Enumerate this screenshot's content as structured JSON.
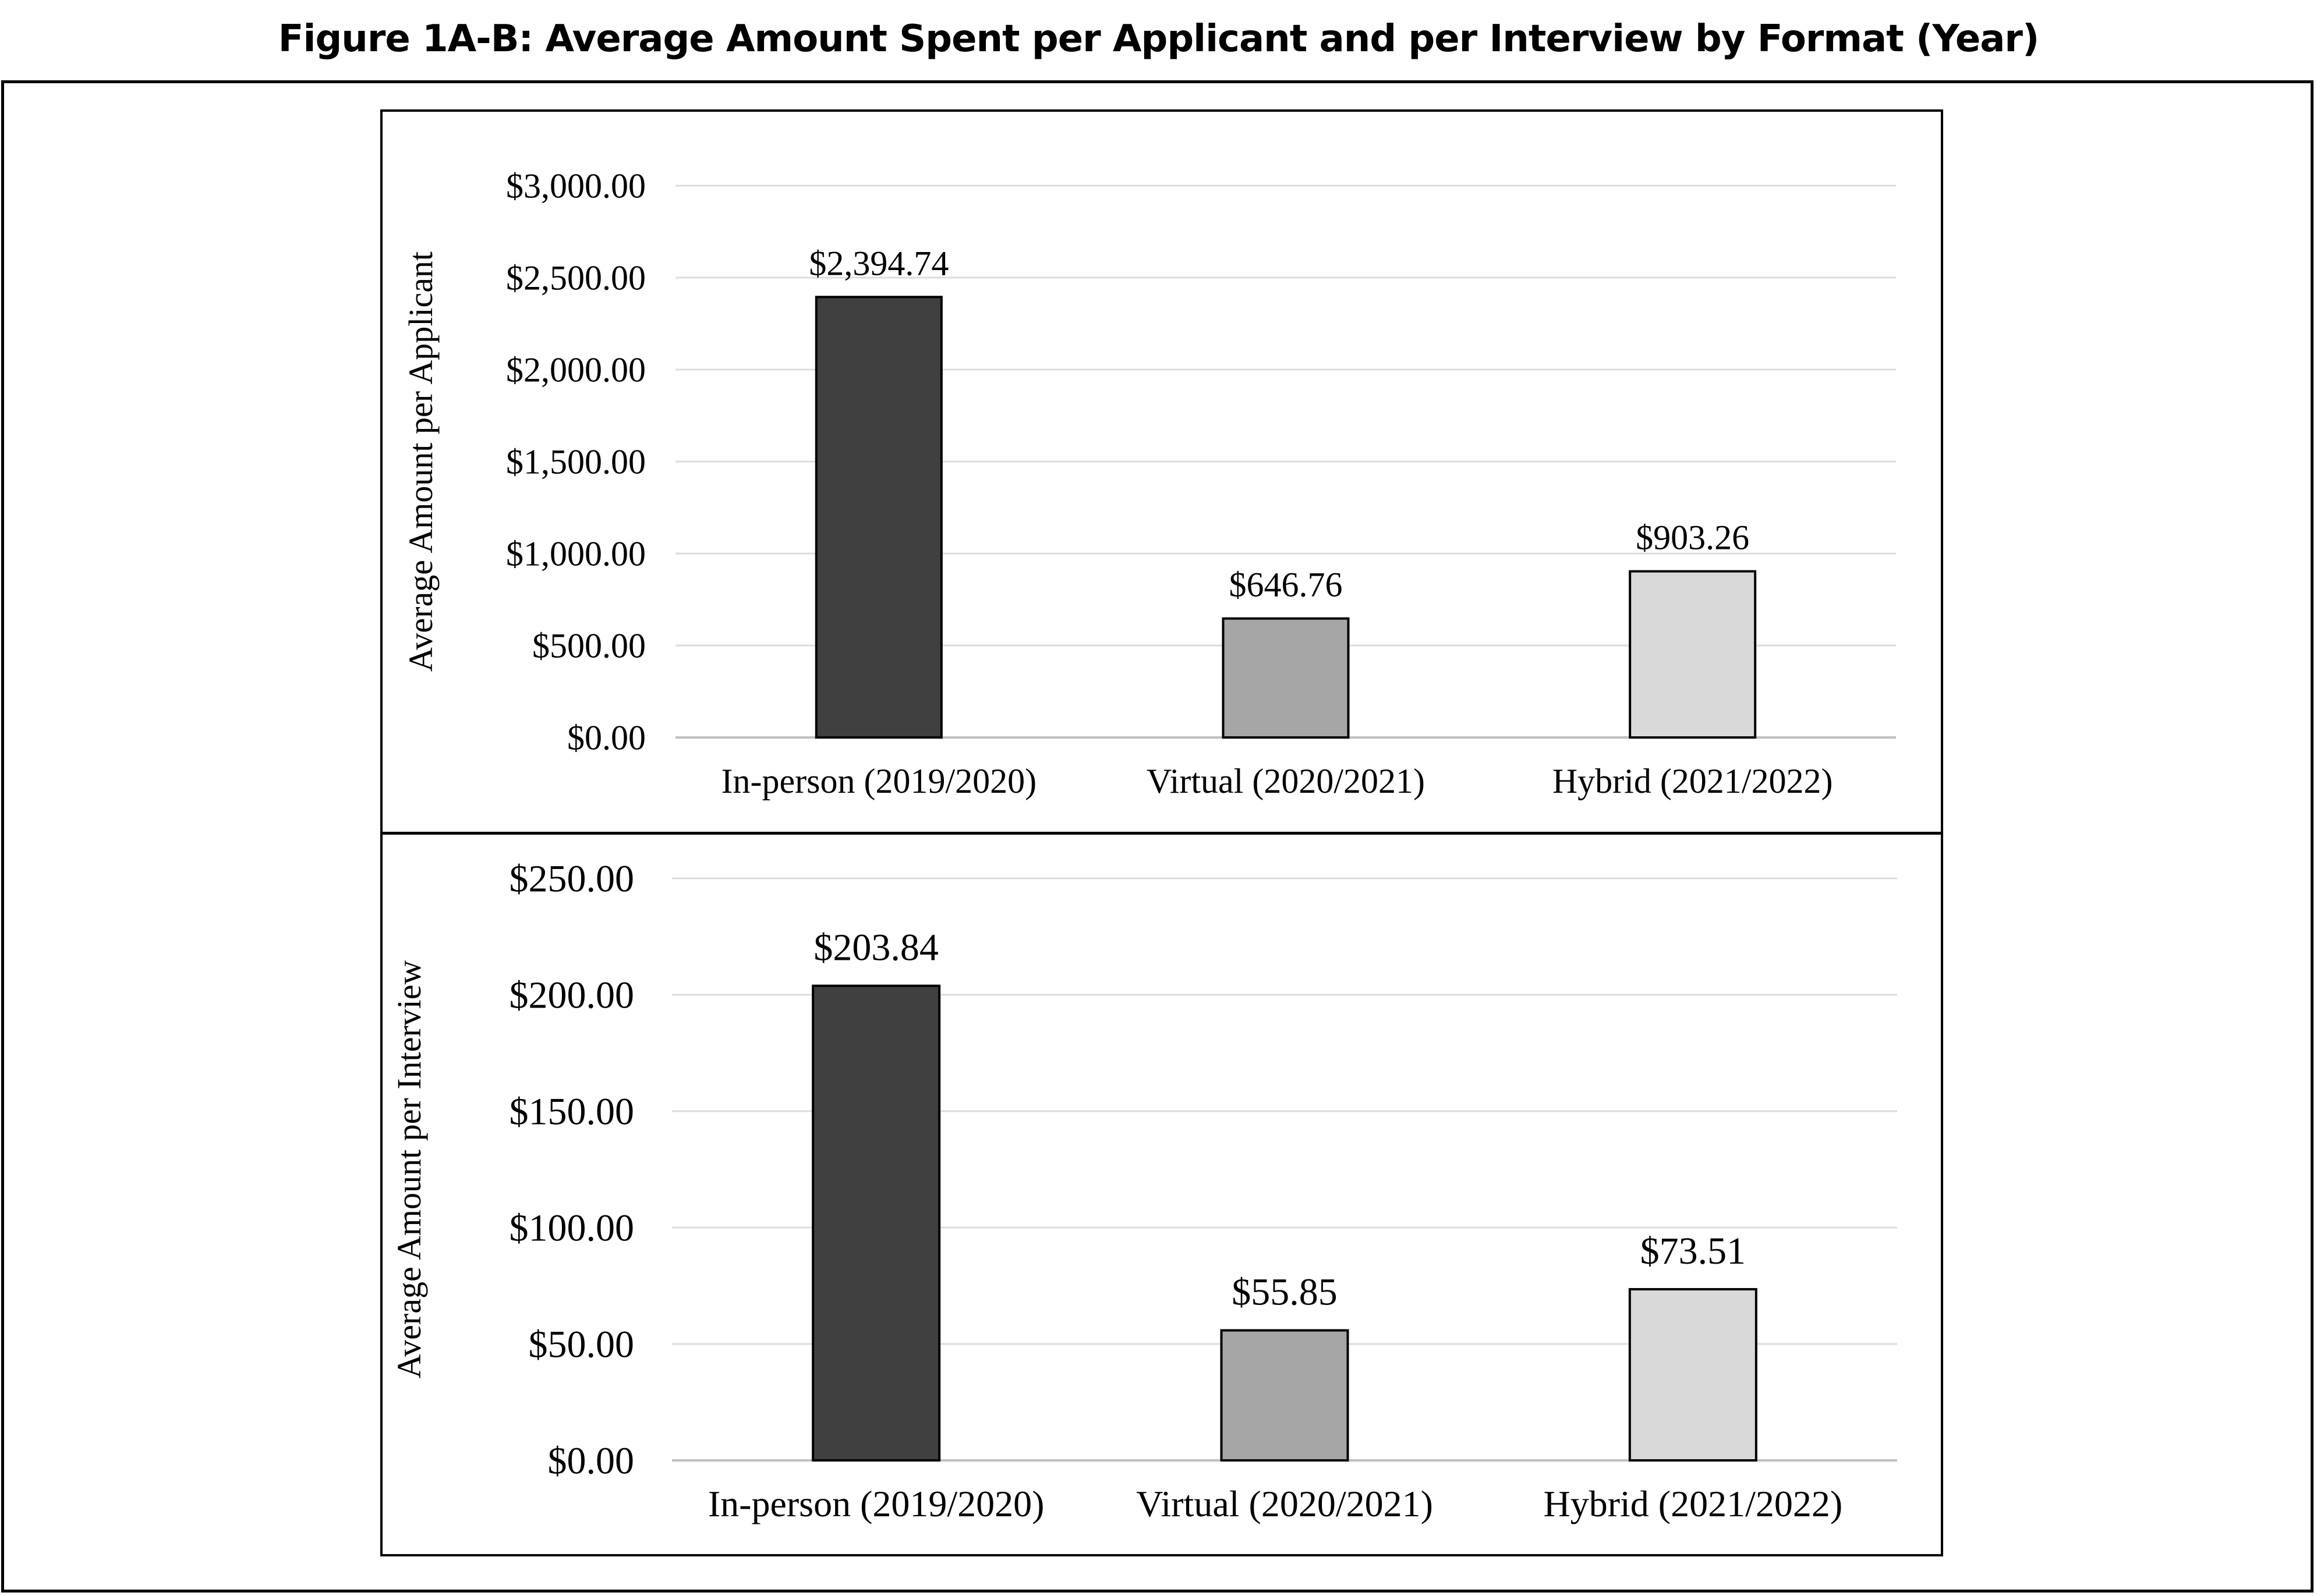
{
  "figure": {
    "title": "Figure 1A-B: Average Amount Spent per Applicant and per Interview by Format (Year)"
  },
  "chart_data": [
    {
      "type": "bar",
      "title": "",
      "xlabel": "",
      "ylabel": "Average Amount per Applicant",
      "categories": [
        "In-person (2019/2020)",
        "Virtual (2020/2021)",
        "Hybrid (2021/2022)"
      ],
      "values": [
        2394.74,
        646.76,
        903.26
      ],
      "data_labels": [
        "$2,394.74",
        "$646.76",
        "$903.26"
      ],
      "bar_colors": [
        "#404040",
        "#a6a6a6",
        "#d9d9d9"
      ],
      "ylim": [
        0,
        3000
      ],
      "yticks": [
        0,
        500,
        1000,
        1500,
        2000,
        2500,
        3000
      ],
      "ytick_labels": [
        "$0.00",
        "$500.00",
        "$1,000.00",
        "$1,500.00",
        "$2,000.00",
        "$2,500.00",
        "$3,000.00"
      ],
      "grid": true,
      "legend": "none"
    },
    {
      "type": "bar",
      "title": "",
      "xlabel": "",
      "ylabel": "Average Amount per Interview",
      "categories": [
        "In-person (2019/2020)",
        "Virtual (2020/2021)",
        "Hybrid (2021/2022)"
      ],
      "values": [
        203.84,
        55.85,
        73.51
      ],
      "data_labels": [
        "$203.84",
        "$55.85",
        "$73.51"
      ],
      "bar_colors": [
        "#404040",
        "#a6a6a6",
        "#d9d9d9"
      ],
      "ylim": [
        0,
        250
      ],
      "yticks": [
        0,
        50,
        100,
        150,
        200,
        250
      ],
      "ytick_labels": [
        "$0.00",
        "$50.00",
        "$100.00",
        "$150.00",
        "$200.00",
        "$250.00"
      ],
      "grid": true,
      "legend": "none"
    }
  ]
}
